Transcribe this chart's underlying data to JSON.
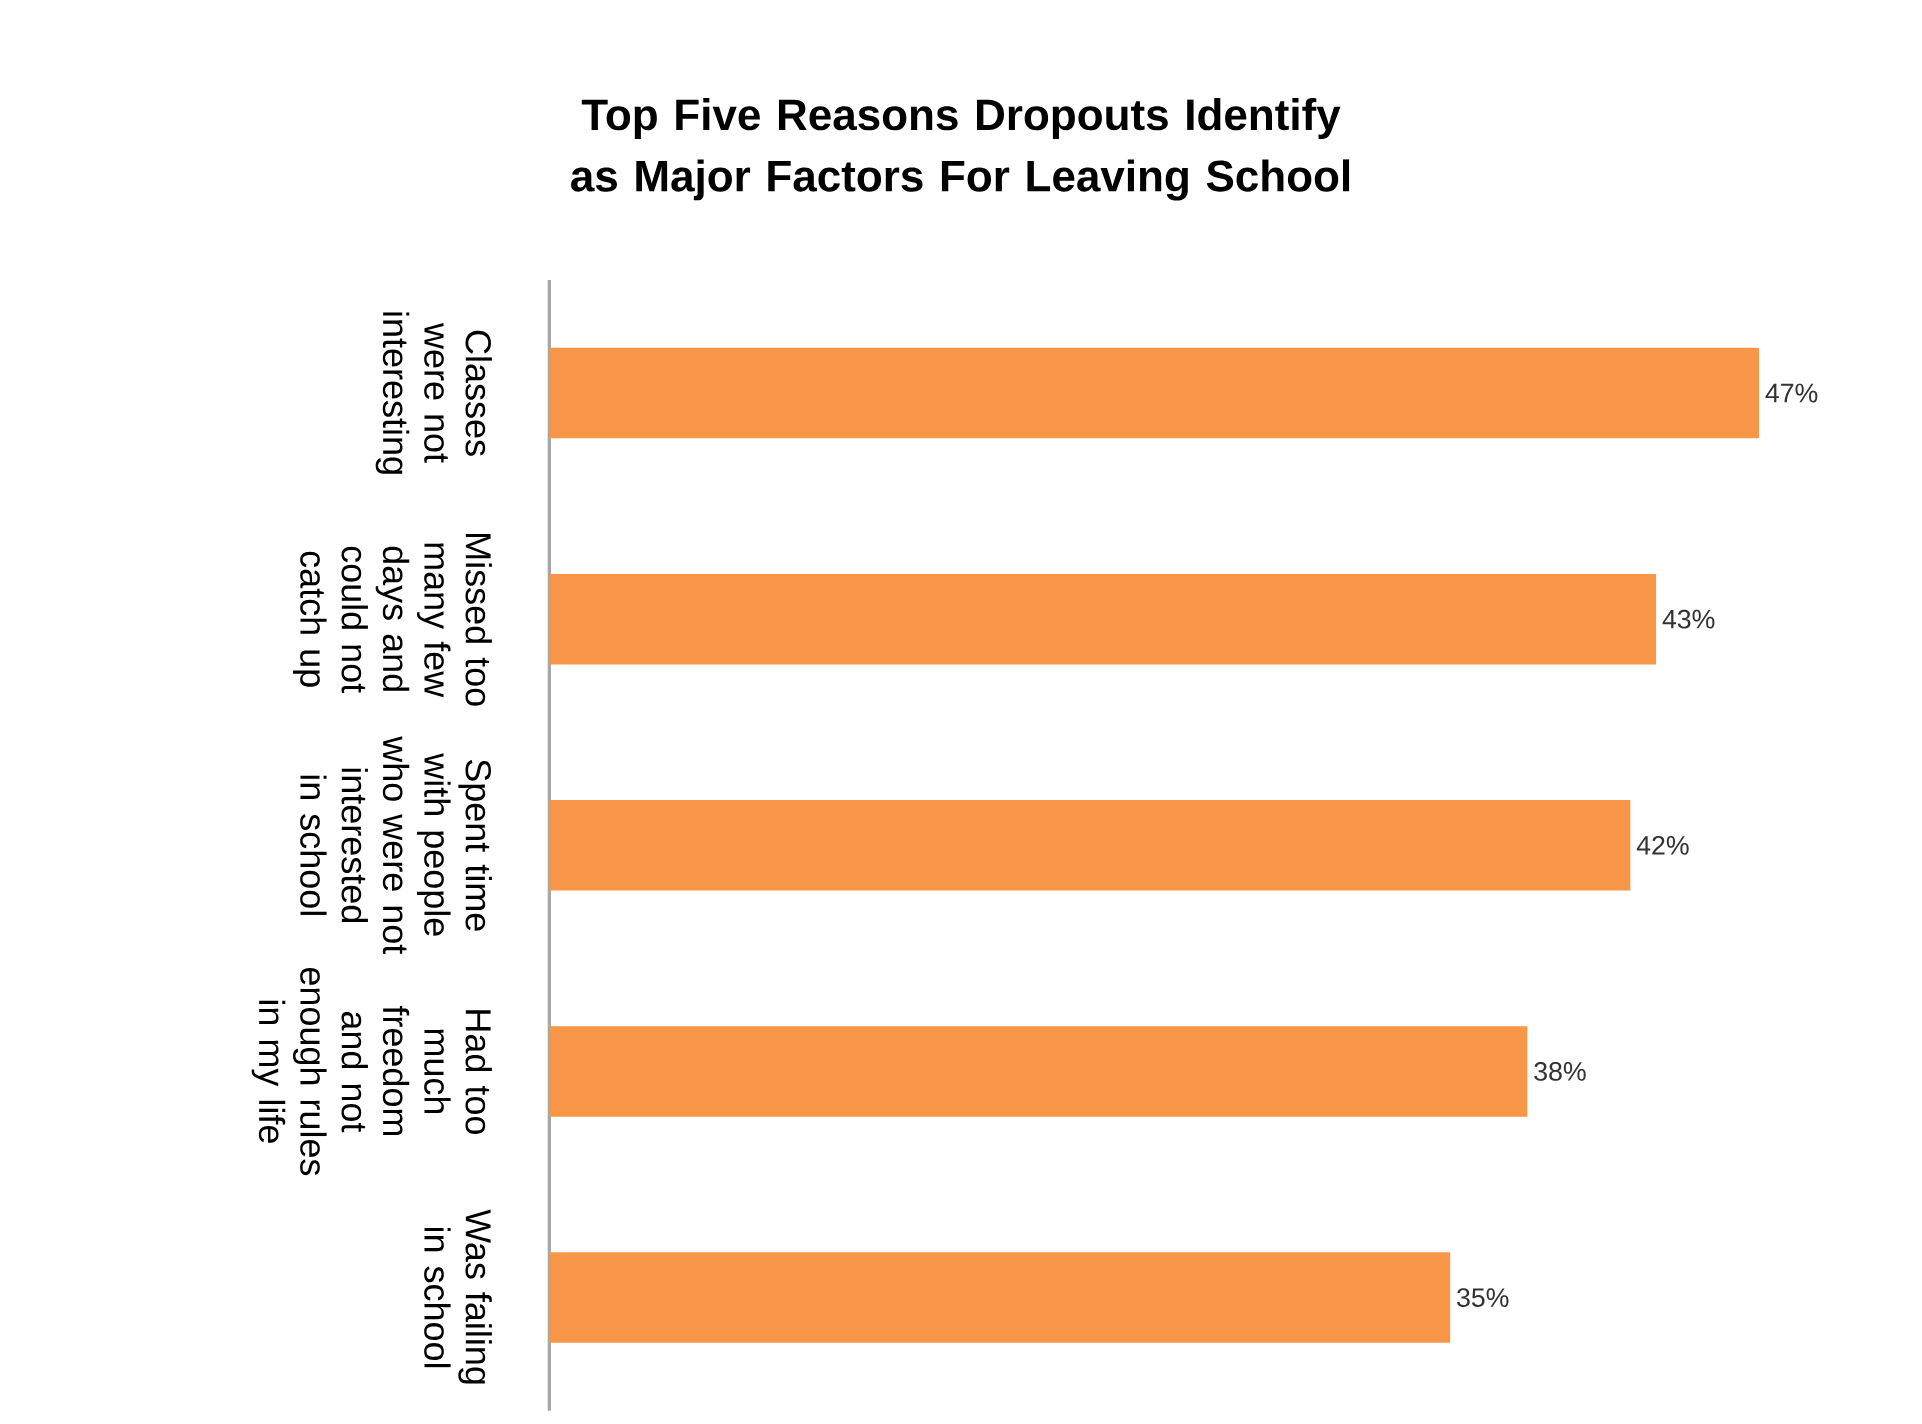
{
  "chart_data": {
    "type": "bar",
    "orientation": "horizontal",
    "title": "Top Five Reasons Dropouts Identify as Major Factors For Leaving School",
    "categories": [
      "Classes were not interesting",
      "Missed too many few days and could not catch up",
      "Spent time with people who were not interested in school",
      "Had too much freedom and not enough rules in my life",
      "Was failing in school"
    ],
    "values": [
      47,
      43,
      42,
      38,
      35
    ],
    "value_labels": [
      "47%",
      "43%",
      "42%",
      "38%",
      "35%"
    ],
    "color": "#f79646",
    "tick_labels": "y"
  }
}
